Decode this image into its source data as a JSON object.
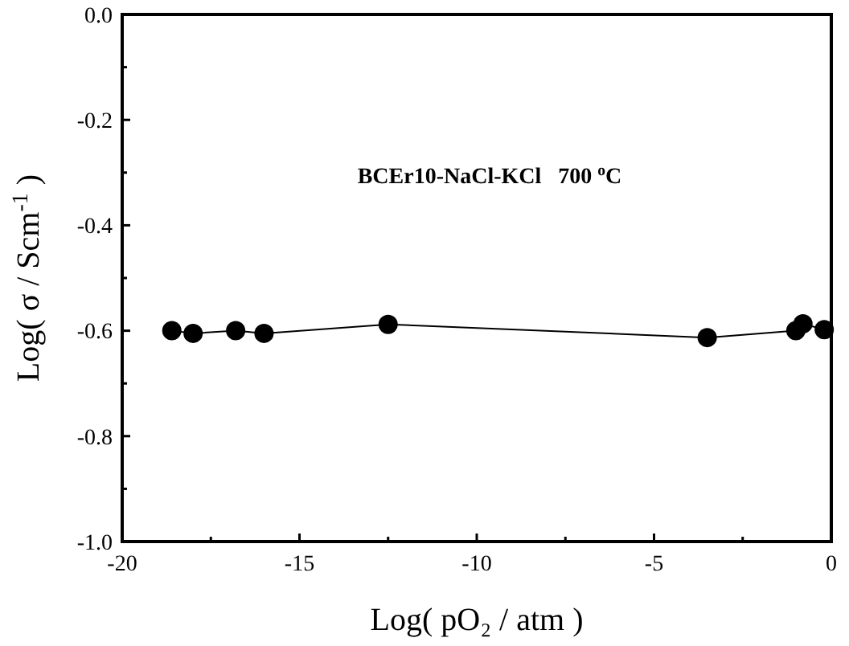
{
  "chart_data": {
    "type": "line",
    "xlabel": "Log( pO₂ / atm )",
    "ylabel": "Log( σ / Scm$^{-1}$ )",
    "annotations": [
      "BCEr10-NaCl-KCl   700 $^{o}$C"
    ],
    "x": [
      -18.6,
      -18.0,
      -16.8,
      -16.0,
      -12.5,
      -3.5,
      -1.0,
      -0.8,
      -0.2
    ],
    "series": [
      {
        "color": "#000000",
        "values": [
          -0.6,
          -0.605,
          -0.6,
          -0.605,
          -0.588,
          -0.613,
          -0.6,
          -0.587,
          -0.598
        ]
      }
    ],
    "marker": "circle",
    "line_style": "solid",
    "xlim": [
      -20,
      0
    ],
    "ylim": [
      -1.0,
      0.0
    ],
    "xticks": [
      -20,
      {
        "value": -17.5,
        "label": null
      },
      -15,
      {
        "value": -12.5,
        "label": null
      },
      -10,
      {
        "value": -7.5,
        "label": null
      },
      -5,
      {
        "value": -2.5,
        "label": null
      },
      0
    ],
    "yticks": [
      {
        "value": -1.0,
        "label": "-1.0"
      },
      {
        "value": -0.9,
        "label": null
      },
      -0.8,
      {
        "value": -0.7,
        "label": null
      },
      -0.6,
      {
        "value": -0.5,
        "label": null
      },
      -0.4,
      {
        "value": -0.3,
        "label": null
      },
      -0.2,
      {
        "value": -0.1,
        "label": null
      },
      {
        "value": 0.0,
        "label": "0.0"
      }
    ]
  }
}
